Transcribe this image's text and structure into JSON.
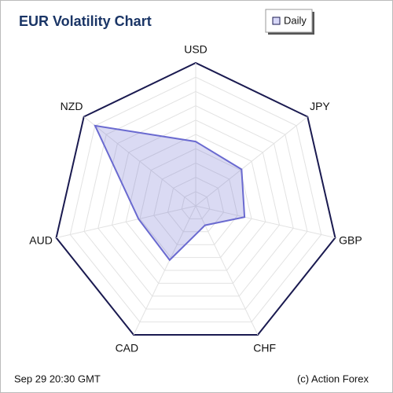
{
  "chart_data": {
    "type": "radar",
    "title": "EUR Volatility Chart",
    "categories": [
      "USD",
      "JPY",
      "GBP",
      "CHF",
      "CAD",
      "AUD",
      "NZD"
    ],
    "series": [
      {
        "name": "Daily",
        "color": "#6a6ad0",
        "values": [
          45,
          41,
          35,
          15,
          42,
          41,
          90
        ]
      }
    ],
    "ylim": [
      0,
      100
    ],
    "yticks": [
      0,
      10,
      20,
      30,
      40,
      50,
      60,
      70,
      80,
      90,
      100
    ],
    "grid": true,
    "legend": "top-right",
    "footer_left": "Sep 29  20:30 GMT",
    "footer_right": "(c) Action Forex"
  }
}
